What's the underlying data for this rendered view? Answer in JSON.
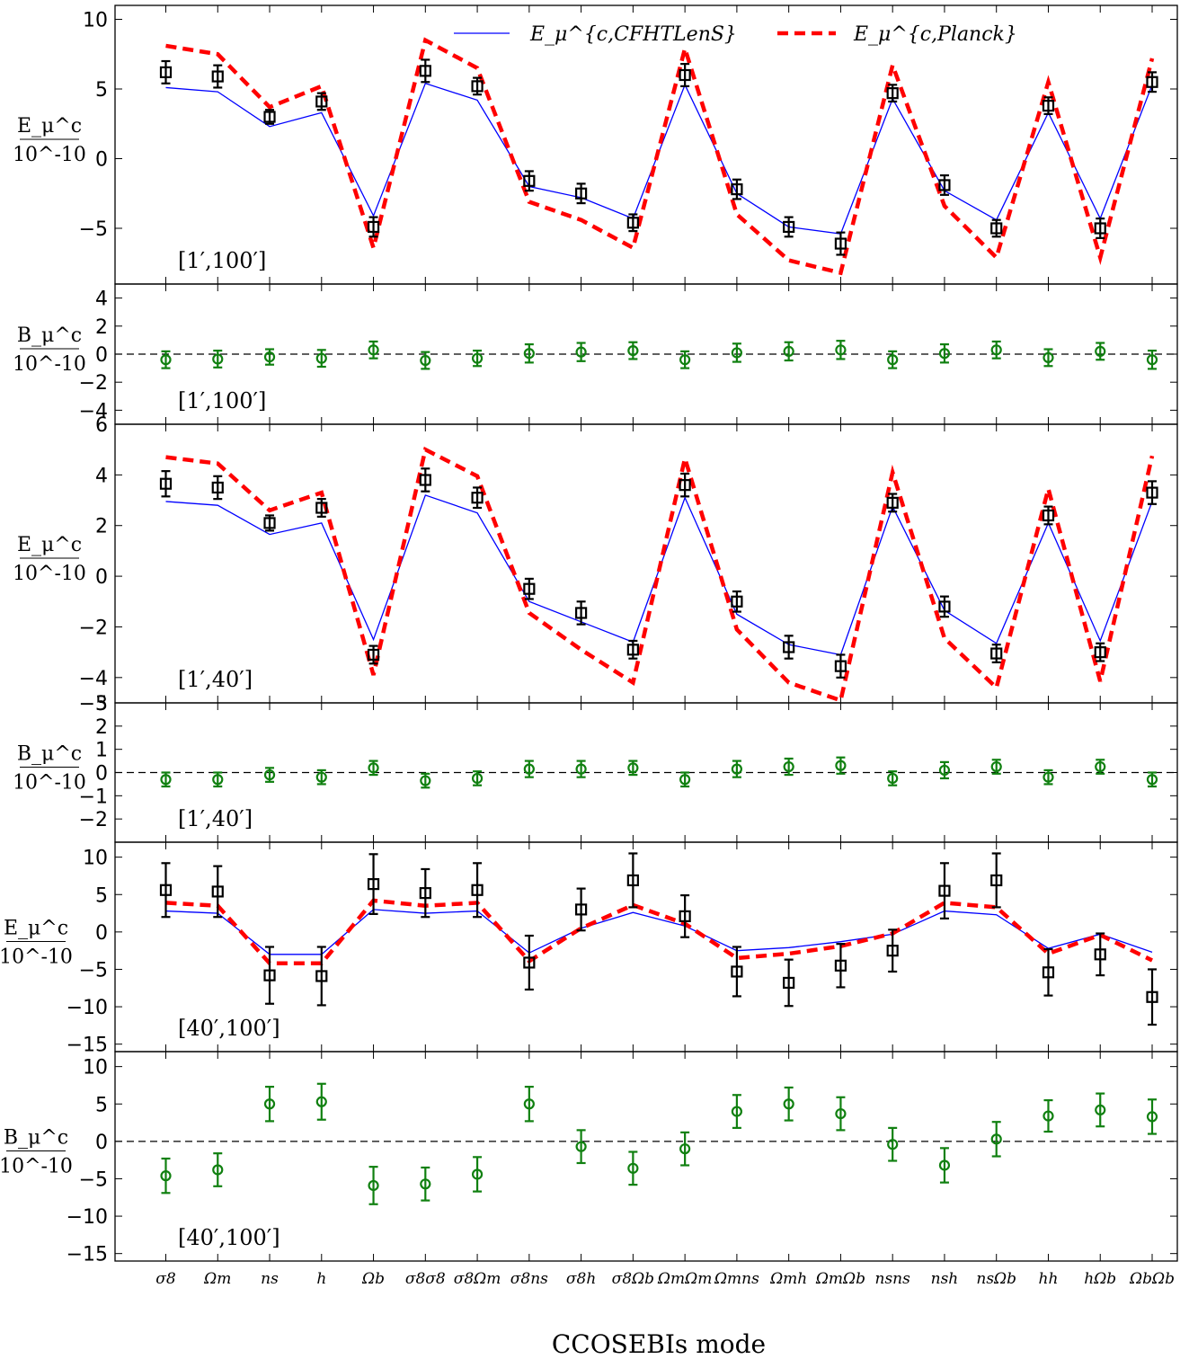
{
  "chart_data": {
    "type": "line",
    "xlabel": "CCOSEBIs mode",
    "categories": [
      "σ8",
      "Ωm",
      "ns",
      "h",
      "Ωb",
      "σ8σ8",
      "σ8Ωm",
      "σ8ns",
      "σ8h",
      "σ8Ωb",
      "ΩmΩm",
      "Ωmns",
      "Ωmh",
      "ΩmΩb",
      "nsns",
      "nsh",
      "nsΩb",
      "hh",
      "hΩb",
      "ΩbΩb"
    ],
    "legend": [
      "E_μ^{c,CFHTLenS}",
      "E_μ^{c,Planck}"
    ],
    "legend_placement": "top-center",
    "colors": {
      "cfhtlens": "#0000ff",
      "planck": "#ff0000",
      "data_e": "#000000",
      "data_b": "#108010"
    },
    "panels": [
      {
        "id": "E1",
        "ylabel_top": "E_μ^c",
        "ylabel_bottom": "10^-10",
        "range_label": "[1′,100′]",
        "ylim": [
          -9,
          11
        ],
        "yticks": [
          -5,
          0,
          5,
          10
        ],
        "ytick_labels": [
          "−5",
          "0",
          "5",
          "10"
        ],
        "zero_line": false,
        "cfhtlens": [
          5.1,
          4.8,
          2.3,
          3.3,
          -4.1,
          5.4,
          4.2,
          -2.0,
          -2.8,
          -4.3,
          5.3,
          -2.5,
          -4.9,
          -5.4,
          4.3,
          -2.3,
          -4.4,
          3.3,
          -4.3,
          5.3
        ],
        "planck": [
          8.1,
          7.5,
          3.7,
          5.2,
          -6.4,
          8.5,
          6.5,
          -3.1,
          -4.4,
          -6.4,
          7.9,
          -4.0,
          -7.3,
          -8.2,
          6.7,
          -3.4,
          -7.1,
          5.5,
          -7.1,
          7.2
        ],
        "points": [
          6.2,
          5.9,
          3.0,
          4.1,
          -4.9,
          6.3,
          5.2,
          -1.6,
          -2.5,
          -4.6,
          6.0,
          -2.2,
          -4.9,
          -6.1,
          4.7,
          -1.9,
          -5.0,
          3.8,
          -5.0,
          5.5
        ],
        "errors": [
          0.8,
          0.8,
          0.5,
          0.6,
          0.7,
          0.8,
          0.6,
          0.7,
          0.7,
          0.6,
          0.8,
          0.7,
          0.7,
          0.8,
          0.6,
          0.7,
          0.6,
          0.6,
          0.7,
          0.7
        ]
      },
      {
        "id": "B1",
        "ylabel_top": "B_μ^c",
        "ylabel_bottom": "10^-10",
        "range_label": "[1′,100′]",
        "ylim": [
          -5,
          5
        ],
        "yticks": [
          -4,
          -2,
          0,
          2,
          4
        ],
        "ytick_labels": [
          "−4",
          "−2",
          "0",
          "2",
          "4"
        ],
        "zero_line": true,
        "points": [
          -0.4,
          -0.35,
          -0.2,
          -0.3,
          0.3,
          -0.45,
          -0.3,
          0.05,
          0.15,
          0.25,
          -0.4,
          0.1,
          0.2,
          0.3,
          -0.4,
          0.05,
          0.3,
          -0.25,
          0.2,
          -0.4
        ],
        "errors": [
          0.6,
          0.6,
          0.55,
          0.6,
          0.6,
          0.6,
          0.55,
          0.65,
          0.65,
          0.6,
          0.6,
          0.65,
          0.65,
          0.65,
          0.6,
          0.65,
          0.6,
          0.6,
          0.6,
          0.65
        ]
      },
      {
        "id": "E2",
        "ylabel_top": "E_μ^c",
        "ylabel_bottom": "10^-10",
        "range_label": "[1′,40′]",
        "ylim": [
          -5,
          6
        ],
        "yticks": [
          -4,
          -2,
          0,
          2,
          4,
          6
        ],
        "ytick_labels": [
          "−4",
          "−2",
          "0",
          "2",
          "4",
          "6"
        ],
        "extra_bottom_tick_label": "−5",
        "zero_line": false,
        "cfhtlens": [
          2.95,
          2.8,
          1.65,
          2.1,
          -2.5,
          3.2,
          2.5,
          -1.0,
          -1.8,
          -2.6,
          3.1,
          -1.5,
          -2.7,
          -3.1,
          2.75,
          -1.35,
          -2.65,
          2.1,
          -2.55,
          2.95
        ],
        "planck": [
          4.7,
          4.45,
          2.6,
          3.3,
          -3.9,
          5.0,
          3.95,
          -1.45,
          -2.9,
          -4.2,
          4.65,
          -2.1,
          -4.2,
          -4.9,
          4.1,
          -2.45,
          -4.4,
          3.45,
          -4.15,
          4.75
        ],
        "points": [
          3.65,
          3.5,
          2.1,
          2.7,
          -3.1,
          3.8,
          3.1,
          -0.5,
          -1.45,
          -2.9,
          3.6,
          -1.0,
          -2.8,
          -3.55,
          2.9,
          -1.2,
          -3.05,
          2.4,
          -3.0,
          3.3
        ],
        "errors": [
          0.5,
          0.45,
          0.3,
          0.35,
          0.35,
          0.45,
          0.4,
          0.4,
          0.45,
          0.35,
          0.45,
          0.4,
          0.45,
          0.45,
          0.35,
          0.4,
          0.35,
          0.35,
          0.35,
          0.45
        ]
      },
      {
        "id": "B2",
        "ylabel_top": "B_μ^c",
        "ylabel_bottom": "10^-10",
        "range_label": "[1′,40′]",
        "ylim": [
          -3,
          3
        ],
        "yticks": [
          -2,
          -1,
          0,
          1,
          2
        ],
        "ytick_labels": [
          "−2",
          "−1",
          "0",
          "1",
          "2"
        ],
        "extra_top_tick_label": "3",
        "zero_line": true,
        "points": [
          -0.3,
          -0.3,
          -0.1,
          -0.2,
          0.2,
          -0.35,
          -0.25,
          0.15,
          0.15,
          0.2,
          -0.3,
          0.15,
          0.25,
          0.3,
          -0.25,
          0.1,
          0.25,
          -0.2,
          0.25,
          -0.3
        ],
        "errors": [
          0.3,
          0.3,
          0.3,
          0.3,
          0.3,
          0.3,
          0.3,
          0.35,
          0.35,
          0.3,
          0.3,
          0.35,
          0.35,
          0.35,
          0.3,
          0.35,
          0.3,
          0.3,
          0.3,
          0.3
        ]
      },
      {
        "id": "E3",
        "ylabel_top": "E_μ^c",
        "ylabel_bottom": "10^-10",
        "range_label": "[40′,100′]",
        "ylim": [
          -16,
          12
        ],
        "yticks": [
          -15,
          -10,
          -5,
          0,
          5,
          10
        ],
        "ytick_labels": [
          "−15",
          "−10",
          "−5",
          "0",
          "5",
          "10"
        ],
        "zero_line": false,
        "cfhtlens": [
          2.8,
          2.5,
          -3.0,
          -3.0,
          3.0,
          2.5,
          2.8,
          -2.8,
          0.5,
          2.6,
          0.8,
          -2.5,
          -2.1,
          -1.3,
          -0.3,
          2.8,
          2.3,
          -2.2,
          -0.3,
          -2.7
        ],
        "planck": [
          3.9,
          3.5,
          -4.2,
          -4.2,
          4.2,
          3.5,
          3.9,
          -3.9,
          0.5,
          3.6,
          1.1,
          -3.5,
          -2.9,
          -1.9,
          -0.2,
          3.9,
          3.3,
          -2.9,
          -0.4,
          -3.8
        ],
        "points": [
          5.6,
          5.4,
          -5.8,
          -5.9,
          6.4,
          5.2,
          5.6,
          -4.1,
          3.0,
          6.9,
          2.1,
          -5.3,
          -6.8,
          -4.5,
          -2.5,
          5.5,
          6.9,
          -5.4,
          -3.0,
          -8.7
        ],
        "errors": [
          3.6,
          3.4,
          3.8,
          3.9,
          4.0,
          3.2,
          3.6,
          3.6,
          2.8,
          3.6,
          2.8,
          3.3,
          3.1,
          2.9,
          2.8,
          3.7,
          3.6,
          3.1,
          2.8,
          3.7
        ]
      },
      {
        "id": "B3",
        "ylabel_top": "B_μ^c",
        "ylabel_bottom": "10^-10",
        "range_label": "[40′,100′]",
        "ylim": [
          -16,
          12
        ],
        "yticks": [
          -15,
          -10,
          -5,
          0,
          5,
          10
        ],
        "ytick_labels": [
          "−15",
          "−10",
          "−5",
          "0",
          "5",
          "10"
        ],
        "zero_line": true,
        "points": [
          -4.6,
          -3.8,
          5.0,
          5.3,
          -5.9,
          -5.7,
          -4.4,
          5.0,
          -0.7,
          -3.6,
          -1.0,
          4.0,
          5.0,
          3.7,
          -0.4,
          -3.2,
          0.3,
          3.4,
          4.2,
          3.3
        ],
        "errors": [
          2.3,
          2.2,
          2.3,
          2.4,
          2.5,
          2.2,
          2.3,
          2.3,
          2.2,
          2.2,
          2.2,
          2.2,
          2.2,
          2.2,
          2.2,
          2.3,
          2.3,
          2.1,
          2.2,
          2.3
        ]
      }
    ]
  }
}
